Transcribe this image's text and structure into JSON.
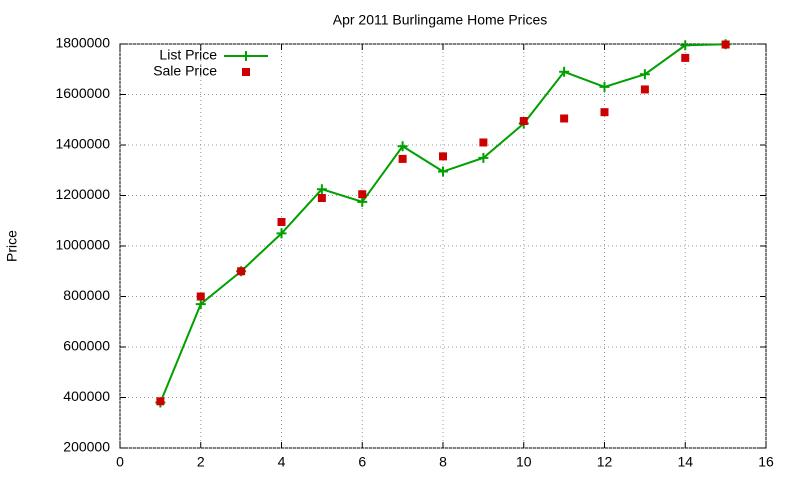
{
  "chart_data": {
    "type": "line",
    "title": "Apr 2011 Burlingame Home Prices",
    "y_label": "Price",
    "x": [
      1,
      2,
      3,
      4,
      5,
      6,
      7,
      8,
      9,
      10,
      11,
      12,
      13,
      14,
      15
    ],
    "series": [
      {
        "name": "List Price",
        "color": "#00a000",
        "style": "linespoints",
        "values": [
          380000,
          770000,
          900000,
          1050000,
          1225000,
          1175000,
          1395000,
          1295000,
          1349000,
          1485000,
          1690000,
          1630000,
          1680000,
          1795000,
          1799000
        ]
      },
      {
        "name": "Sale Price",
        "color": "#cc0000",
        "style": "points",
        "values": [
          385000,
          800000,
          900000,
          1095000,
          1190000,
          1205000,
          1345000,
          1355000,
          1410000,
          1495000,
          1505000,
          1530000,
          1620000,
          1745000,
          1798000
        ]
      }
    ],
    "xlim": [
      0,
      16
    ],
    "xticks": [
      0,
      2,
      4,
      6,
      8,
      10,
      12,
      14,
      16
    ],
    "ylim": [
      200000,
      1800000
    ],
    "yticks": [
      200000,
      400000,
      600000,
      800000,
      1000000,
      1200000,
      1400000,
      1600000,
      1800000
    ],
    "grid": true,
    "legend": "top-left"
  }
}
